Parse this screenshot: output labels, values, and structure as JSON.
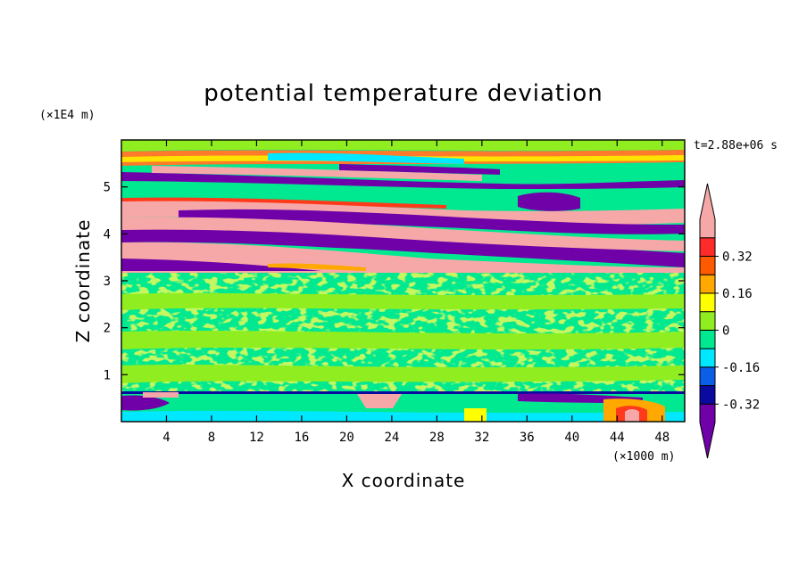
{
  "chart_data": {
    "type": "heatmap",
    "title": "potential temperature deviation",
    "xlabel": "X coordinate",
    "ylabel": "Z coordinate",
    "x_unit": "(×1000 m)",
    "y_unit": "(×1E4 m)",
    "time_label": "t=2.88e+06 s",
    "xlim": [
      0,
      50
    ],
    "ylim": [
      0,
      6
    ],
    "x_ticks": [
      4,
      8,
      12,
      16,
      20,
      24,
      28,
      32,
      36,
      40,
      44,
      48
    ],
    "y_ticks": [
      1,
      2,
      3,
      4,
      5
    ],
    "colorbar": {
      "levels": [
        -0.4,
        -0.32,
        -0.24,
        -0.16,
        -0.08,
        0,
        0.08,
        0.16,
        0.24,
        0.32,
        0.4
      ],
      "labeled_levels": [
        "0.32",
        "0.16",
        "0",
        "-0.16",
        "-0.32"
      ],
      "colors": [
        "#7000a8",
        "#0a0aa0",
        "#0a5ee8",
        "#00e8ff",
        "#00e890",
        "#90ee20",
        "#ffff00",
        "#ffa800",
        "#ff5a00",
        "#ff2a2a",
        "#f6a8a8"
      ],
      "extend": "both"
    },
    "bands": [
      {
        "z_range": [
          0,
          0.6
        ],
        "description": "mixed near-surface layer with weak negative and strong positive cells"
      },
      {
        "z_range": [
          0.6,
          3.2
        ],
        "value_range": [
          -0.08,
          0.08
        ]
      },
      {
        "z_range": [
          3.2,
          5.9
        ],
        "value_range": [
          -0.4,
          0.4
        ],
        "pattern": "alternating tilted layers"
      }
    ]
  }
}
